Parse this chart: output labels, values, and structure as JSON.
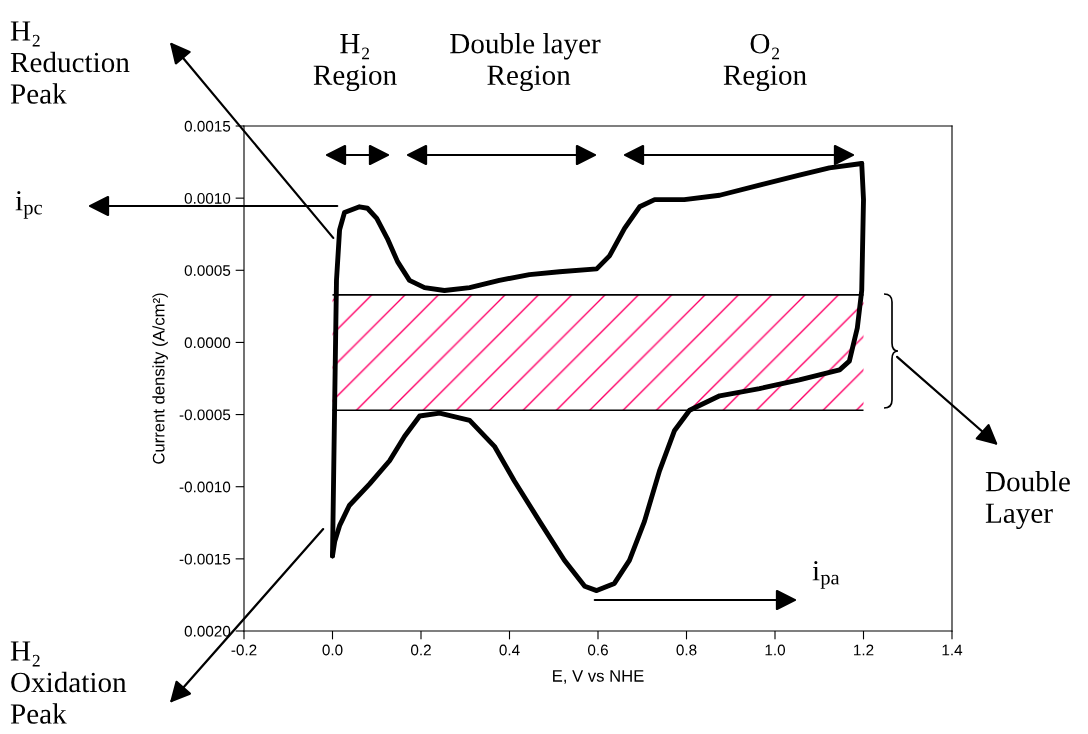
{
  "chart_data": {
    "type": "line",
    "xlabel": "E, V vs NHE",
    "ylabel": "Current density (A/cm²)",
    "xlim": [
      -0.2,
      1.4
    ],
    "xticks": [
      -0.2,
      {
        "value": 0,
        "label": "0.0"
      },
      0.2,
      0.4,
      0.6,
      0.8,
      {
        "value": 1,
        "label": "1.0"
      },
      1.2,
      1.4
    ],
    "ylim": [
      -0.002,
      0.0015
    ],
    "yticks": [
      0.0015,
      {
        "value": 0.001,
        "label": "0.0010"
      },
      0.0005,
      {
        "value": 0,
        "label": "0.0000"
      },
      -0.0005,
      {
        "value": -0.001,
        "label": "-0.0010"
      },
      -0.0015,
      {
        "value": -0.002,
        "label": "0.0020"
      }
    ],
    "grid": false,
    "series": [
      {
        "color": "#000000",
        "values": [
          -0.00148,
          -0.0004,
          0.00043,
          0.00078,
          0.0009,
          0.00094,
          0.00093,
          0.00086,
          0.00072,
          0.00056,
          0.00043,
          0.00038,
          0.00036,
          0.00038,
          0.00043,
          0.00047,
          0.00049,
          0.00051,
          0.0006,
          0.00079,
          0.00094,
          0.00099,
          0.00099,
          0.00102,
          0.00109,
          0.00116,
          0.00121,
          0.00124
        ],
        "x": [
          0,
          0.005,
          0.009,
          0.016,
          0.027,
          0.061,
          0.079,
          0.1,
          0.124,
          0.147,
          0.174,
          0.208,
          0.253,
          0.31,
          0.377,
          0.445,
          0.513,
          0.597,
          0.626,
          0.66,
          0.694,
          0.728,
          0.795,
          0.875,
          0.965,
          1.055,
          1.123,
          1.196
        ]
      },
      {
        "color": "#000000",
        "x": [
          1.196,
          1.2,
          1.196,
          1.186,
          1.168,
          1.146,
          1.055,
          0.965,
          0.875,
          0.807,
          0.773,
          0.739,
          0.705,
          0.671,
          0.637,
          0.597,
          0.57,
          0.524,
          0.468,
          0.411,
          0.366,
          0.31,
          0.242,
          0.197,
          0.163,
          0.129,
          0.084,
          0.038,
          0.016,
          0.005,
          0
        ],
        "values": [
          0.00124,
          0.00099,
          0.00036,
          0.0001,
          -0.00013,
          -0.00019,
          -0.00026,
          -0.00032,
          -0.00037,
          -0.00047,
          -0.00061,
          -0.00089,
          -0.00124,
          -0.00151,
          -0.00167,
          -0.00172,
          -0.00169,
          -0.00151,
          -0.00124,
          -0.00096,
          -0.00072,
          -0.00054,
          -0.00049,
          -0.00051,
          -0.00065,
          -0.00082,
          -0.00098,
          -0.00113,
          -0.00127,
          -0.00138,
          -0.00148
        ]
      }
    ],
    "ref_lines": [
      {
        "axis": "y",
        "value": 0.00033,
        "color": "#000000"
      },
      {
        "axis": "y",
        "value": -0.00047,
        "color": "#000000"
      }
    ],
    "annotations": [
      "H₂\nRegion",
      "Double layer\n Region",
      "O₂\nRegion",
      "H₂\nReduction\nPeak",
      "i$_{pc}$",
      "H₂\nOxidation\nPeak",
      "i$_{pa}$",
      "Double\nLayer"
    ]
  }
}
